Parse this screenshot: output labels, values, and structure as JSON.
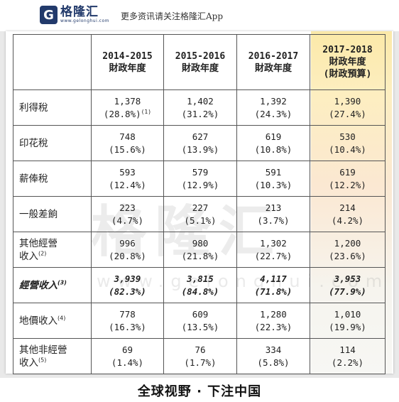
{
  "header": {
    "logo_mark": "G",
    "logo_name": "格隆汇",
    "logo_url": "www.gelonghui.com",
    "subtitle": "更多资讯请关注格隆汇App"
  },
  "table": {
    "columns": [
      {
        "line1": "2014-2015",
        "line2": "財政年度",
        "line3": ""
      },
      {
        "line1": "2015-2016",
        "line2": "財政年度",
        "line3": ""
      },
      {
        "line1": "2016-2017",
        "line2": "財政年度",
        "line3": ""
      },
      {
        "line1": "2017-2018",
        "line2": "財政年度",
        "line3": "(財政預算)"
      }
    ],
    "rows": [
      {
        "label": "利得稅",
        "label2": "",
        "note": "",
        "bold": false,
        "cells": [
          {
            "value": "1,378",
            "pct": "(28.8%)",
            "note": "(1)"
          },
          {
            "value": "1,402",
            "pct": "(31.2%)",
            "note": ""
          },
          {
            "value": "1,392",
            "pct": "(24.3%)",
            "note": ""
          },
          {
            "value": "1,390",
            "pct": "(27.4%)",
            "note": ""
          }
        ]
      },
      {
        "label": "印花稅",
        "label2": "",
        "note": "",
        "bold": false,
        "cells": [
          {
            "value": "748",
            "pct": "(15.6%)",
            "note": ""
          },
          {
            "value": "627",
            "pct": "(13.9%)",
            "note": ""
          },
          {
            "value": "619",
            "pct": "(10.8%)",
            "note": ""
          },
          {
            "value": "530",
            "pct": "(10.4%)",
            "note": ""
          }
        ]
      },
      {
        "label": "薪俸稅",
        "label2": "",
        "note": "",
        "bold": false,
        "cells": [
          {
            "value": "593",
            "pct": "(12.4%)",
            "note": ""
          },
          {
            "value": "579",
            "pct": "(12.9%)",
            "note": ""
          },
          {
            "value": "591",
            "pct": "(10.3%)",
            "note": ""
          },
          {
            "value": "619",
            "pct": "(12.2%)",
            "note": ""
          }
        ]
      },
      {
        "label": "一般差餉",
        "label2": "",
        "note": "",
        "bold": false,
        "cells": [
          {
            "value": "223",
            "pct": "(4.7%)",
            "note": ""
          },
          {
            "value": "227",
            "pct": "(5.1%)",
            "note": ""
          },
          {
            "value": "213",
            "pct": "(3.7%)",
            "note": ""
          },
          {
            "value": "214",
            "pct": "(4.2%)",
            "note": ""
          }
        ]
      },
      {
        "label": "其他經營",
        "label2": "收入",
        "note": "(2)",
        "bold": false,
        "cells": [
          {
            "value": "996",
            "pct": "(20.8%)",
            "note": ""
          },
          {
            "value": "980",
            "pct": "(21.8%)",
            "note": ""
          },
          {
            "value": "1,302",
            "pct": "(22.7%)",
            "note": ""
          },
          {
            "value": "1,200",
            "pct": "(23.6%)",
            "note": ""
          }
        ]
      },
      {
        "label": "經營收入",
        "label2": "",
        "note": "(3)",
        "bold": true,
        "cells": [
          {
            "value": "3,939",
            "pct": "(82.3%)",
            "note": ""
          },
          {
            "value": "3,815",
            "pct": "(84.8%)",
            "note": ""
          },
          {
            "value": "4,117",
            "pct": "(71.8%)",
            "note": ""
          },
          {
            "value": "3,953",
            "pct": "(77.9%)",
            "note": ""
          }
        ]
      },
      {
        "label": "地價收入",
        "label2": "",
        "note": "(4)",
        "bold": false,
        "cells": [
          {
            "value": "778",
            "pct": "(16.3%)",
            "note": ""
          },
          {
            "value": "609",
            "pct": "(13.5%)",
            "note": ""
          },
          {
            "value": "1,280",
            "pct": "(22.3%)",
            "note": ""
          },
          {
            "value": "1,010",
            "pct": "(19.9%)",
            "note": ""
          }
        ]
      },
      {
        "label": "其他非經營",
        "label2": "收入",
        "note": "(5)",
        "bold": false,
        "cells": [
          {
            "value": "69",
            "pct": "(1.4%)",
            "note": ""
          },
          {
            "value": "76",
            "pct": "(1.7%)",
            "note": ""
          },
          {
            "value": "334",
            "pct": "(5.8%)",
            "note": ""
          },
          {
            "value": "114",
            "pct": "(2.2%)",
            "note": ""
          }
        ]
      }
    ]
  },
  "watermark": {
    "text": "格隆汇",
    "url": "www.gelonghui.com"
  },
  "footer": {
    "slogan": "全球视野 · 下注中国"
  }
}
